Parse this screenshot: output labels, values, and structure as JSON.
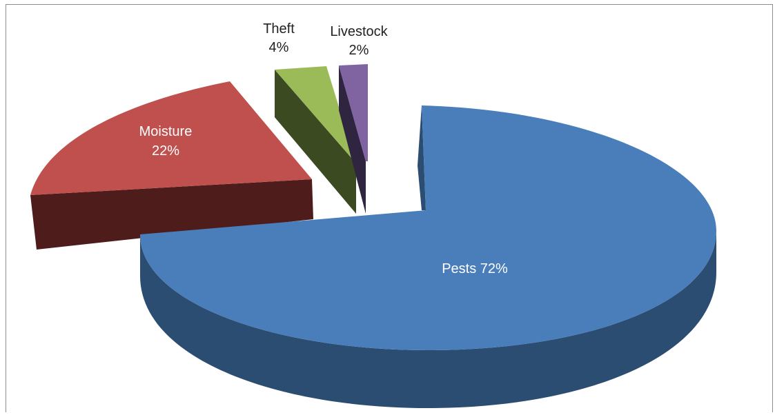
{
  "chart_data": {
    "type": "pie",
    "style": "3d-exploded",
    "slices": [
      {
        "name": "Pests",
        "value": 72,
        "label": "Pests 72%",
        "color": "#4a7ebb",
        "side": "#2c4d72"
      },
      {
        "name": "Moisture",
        "value": 22,
        "label_name": "Moisture",
        "label_pct": "22%",
        "color": "#c0504d",
        "side": "#4d1c1b"
      },
      {
        "name": "Theft",
        "value": 4,
        "label_name": "Theft",
        "label_pct": "4%",
        "color": "#9bbb59",
        "side": "#3c4a22"
      },
      {
        "name": "Livestock",
        "value": 2,
        "label_name": "Livestock",
        "label_pct": "2%",
        "color": "#8064a2",
        "side": "#2f2540"
      }
    ]
  }
}
